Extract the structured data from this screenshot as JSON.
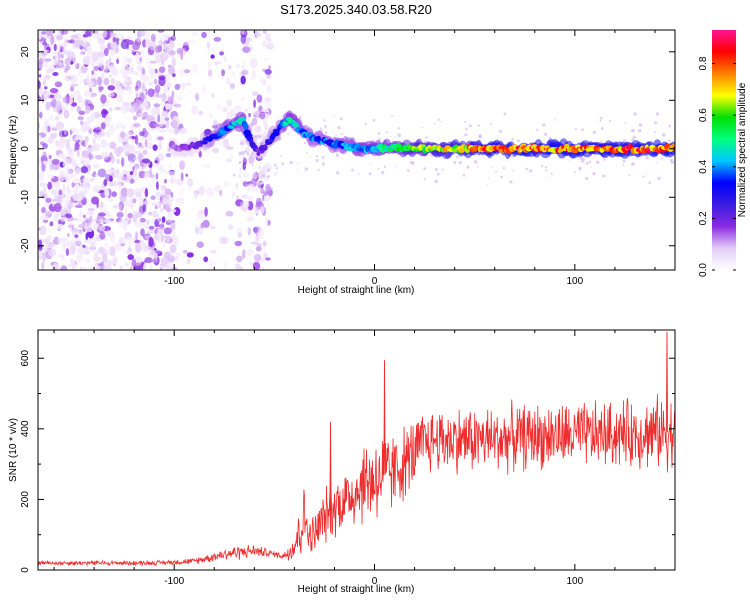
{
  "title": "S173.2025.340.03.58.R20",
  "chart_data": [
    {
      "type": "heatmap",
      "xlabel": "Height of straight line (km)",
      "ylabel": "Frequency (Hz)",
      "xlim": [
        -168,
        150
      ],
      "ylim": [
        -25,
        24.5
      ],
      "xticks": [
        -100,
        0,
        100
      ],
      "yticks": [
        -20,
        -10,
        0,
        10,
        20
      ],
      "colorbar": {
        "label": "Normalized spectral amplitude",
        "range": [
          0,
          0.93
        ],
        "ticks": [
          "0.0",
          "0.2",
          "0.4",
          "0.6",
          "0.8"
        ],
        "tick_values": [
          0.0,
          0.2,
          0.4,
          0.6,
          0.8
        ],
        "colormap": [
          "#ffffff",
          "#e4ccf7",
          "#8a2be2",
          "#3a1ce0",
          "#0000ff",
          "#00c8ff",
          "#00ff7f",
          "#00e000",
          "#ffff00",
          "#ff8000",
          "#ff0000",
          "#ff1493"
        ]
      },
      "trace": {
        "description": "main ridge of frequency vs height",
        "x": [
          -100,
          -90,
          -85,
          -78,
          -70,
          -66,
          -62,
          -58,
          -54,
          -50,
          -46,
          -42,
          -38,
          -34,
          -30,
          -20,
          -10,
          0,
          10,
          20,
          40,
          60,
          80,
          100,
          120,
          150
        ],
        "y": [
          0,
          0.5,
          1.5,
          3,
          5,
          6,
          2,
          -1,
          1,
          3,
          5,
          6,
          4,
          3,
          2,
          1,
          0.3,
          0,
          0.2,
          0,
          0,
          0,
          0,
          0,
          0,
          0
        ],
        "amplitude": [
          0.15,
          0.2,
          0.3,
          0.4,
          0.45,
          0.5,
          0.3,
          0.2,
          0.25,
          0.35,
          0.45,
          0.5,
          0.45,
          0.4,
          0.4,
          0.4,
          0.45,
          0.5,
          0.55,
          0.65,
          0.75,
          0.85,
          0.85,
          0.85,
          0.85,
          0.9
        ]
      },
      "noise_region": {
        "x_range": [
          -168,
          -45
        ],
        "density": "high for x < -100, scattered band near -65 to -55"
      }
    },
    {
      "type": "line",
      "xlabel": "Height of straight line (km)",
      "ylabel": "SNR (10 * v/v)",
      "xlim": [
        -168,
        150
      ],
      "ylim": [
        0,
        680
      ],
      "xticks": [
        -100,
        0,
        100
      ],
      "yticks": [
        0,
        200,
        400,
        600
      ],
      "color": "#ee2c2c",
      "envelope": {
        "x": [
          -168,
          -110,
          -90,
          -75,
          -68,
          -60,
          -50,
          -45,
          -40,
          -37,
          -35,
          -32,
          -30,
          -25,
          -20,
          -15,
          -10,
          -5,
          0,
          5,
          10,
          20,
          25,
          30,
          40,
          60,
          80,
          100,
          120,
          140,
          150
        ],
        "baseline": [
          20,
          20,
          25,
          45,
          50,
          55,
          45,
          40,
          70,
          120,
          150,
          90,
          100,
          150,
          180,
          200,
          220,
          250,
          260,
          270,
          280,
          330,
          360,
          370,
          370,
          370,
          380,
          380,
          385,
          390,
          390
        ],
        "amplitude": [
          8,
          8,
          10,
          20,
          25,
          20,
          10,
          15,
          60,
          110,
          100,
          60,
          80,
          90,
          100,
          110,
          120,
          140,
          160,
          150,
          130,
          120,
          110,
          110,
          110,
          110,
          110,
          110,
          110,
          120,
          120
        ]
      },
      "notable_values": [
        {
          "x": 146,
          "y": 675
        },
        {
          "x": -22,
          "y": 420
        },
        {
          "x": 5,
          "y": 595
        }
      ]
    }
  ]
}
